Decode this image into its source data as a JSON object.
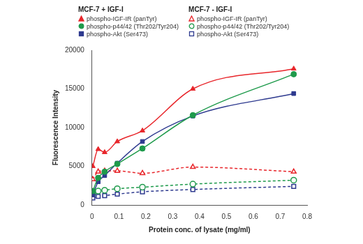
{
  "chart_data": {
    "type": "scatter",
    "x_label": "Protein conc. of lysate (mg/ml)",
    "y_label": "Fluorescence Intensity",
    "xlim": [
      0,
      0.8
    ],
    "xticks": [
      0,
      0.1,
      0.2,
      0.3,
      0.4,
      0.5,
      0.6,
      0.7,
      0.8
    ],
    "ylim": [
      0,
      20000
    ],
    "yticks": [
      0,
      5000,
      10000,
      15000,
      20000
    ],
    "grid": false,
    "legend": "top-left",
    "x": [
      0.003,
      0.023,
      0.047,
      0.094,
      0.1875,
      0.375,
      0.75
    ],
    "series": [
      {
        "group": "MCF-7 + IGF-I",
        "name": "phospho-IGF-IR (panTyr)",
        "color": "#e8262b",
        "marker": "triangle",
        "line_style": "solid",
        "values": [
          5000,
          7200,
          6800,
          8200,
          9600,
          15000,
          17600
        ]
      },
      {
        "group": "MCF-7 + IGF-I",
        "name": "phospho-p44/42 (Thr202/Tyr204)",
        "color": "#1e9a4b",
        "marker": "circle",
        "line_style": "solid",
        "values": [
          1800,
          3500,
          4300,
          5300,
          7300,
          11600,
          16900
        ]
      },
      {
        "group": "MCF-7 + IGF-I",
        "name": "phospho-Akt (Ser473)",
        "color": "#2e3a8f",
        "marker": "square",
        "line_style": "solid",
        "values": [
          1300,
          3000,
          3800,
          5400,
          8200,
          11500,
          14400
        ]
      },
      {
        "group": "MCF-7 - IGF-I",
        "name": "phospho-IGF-IR (panTyr)",
        "color": "#e8262b",
        "marker": "triangle-open",
        "line_style": "dashed",
        "values": [
          3300,
          4300,
          4400,
          4400,
          4100,
          4900,
          4300
        ]
      },
      {
        "group": "MCF-7 - IGF-I",
        "name": "phospho-p44/42 (Thr202/Tyr204)",
        "color": "#1e9a4b",
        "marker": "circle-open",
        "line_style": "dashed",
        "values": [
          1500,
          1800,
          1900,
          2100,
          2300,
          2700,
          3200
        ]
      },
      {
        "group": "MCF-7 - IGF-I",
        "name": "phospho-Akt (Ser473)",
        "color": "#2e3a8f",
        "marker": "square-open",
        "line_style": "dashed",
        "values": [
          900,
          1100,
          1200,
          1400,
          1700,
          2000,
          2400
        ]
      }
    ]
  }
}
